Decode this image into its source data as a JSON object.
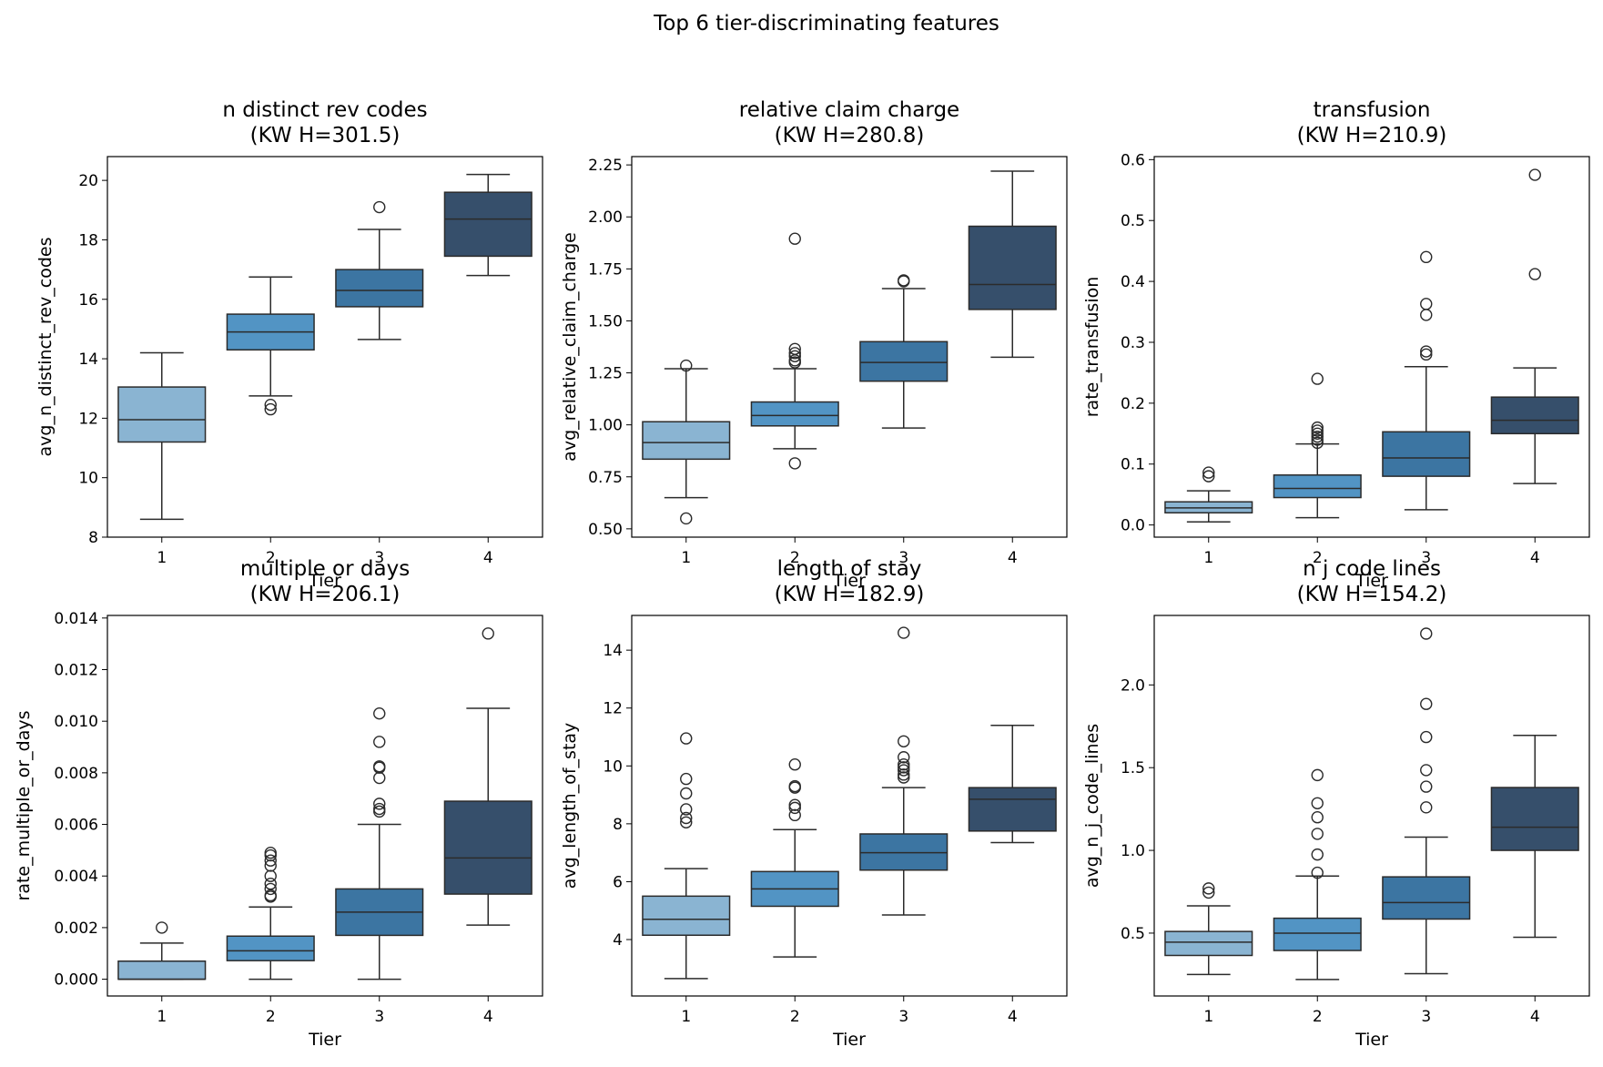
{
  "figure_title": "Top 6 tier-discriminating features",
  "palette": [
    "#8ab4d2",
    "#5294c4",
    "#3c75a2",
    "#364f6b"
  ],
  "chart_data": [
    {
      "type": "box",
      "title_line1": "n distinct rev codes",
      "title_line2": "(KW H=301.5)",
      "xlabel": "Tier",
      "ylabel": "avg_n_distinct_rev_codes",
      "categories": [
        "1",
        "2",
        "3",
        "4"
      ],
      "ylim": [
        8,
        20.8
      ],
      "yticks": [
        8,
        10,
        12,
        14,
        16,
        18,
        20
      ],
      "ytick_labels": [
        "8",
        "10",
        "12",
        "14",
        "16",
        "18",
        "20"
      ],
      "boxes": [
        {
          "whislo": 8.6,
          "q1": 11.2,
          "med": 11.95,
          "q3": 13.05,
          "whishi": 14.2,
          "fliers": []
        },
        {
          "whislo": 12.75,
          "q1": 14.3,
          "med": 14.9,
          "q3": 15.5,
          "whishi": 16.75,
          "fliers": [
            12.3,
            12.45
          ]
        },
        {
          "whislo": 14.65,
          "q1": 15.75,
          "med": 16.3,
          "q3": 17.0,
          "whishi": 18.35,
          "fliers": [
            19.1
          ]
        },
        {
          "whislo": 16.8,
          "q1": 17.45,
          "med": 18.7,
          "q3": 19.6,
          "whishi": 20.2,
          "fliers": []
        }
      ]
    },
    {
      "type": "box",
      "title_line1": "relative claim charge",
      "title_line2": "(KW H=280.8)",
      "xlabel": "Tier",
      "ylabel": "avg_relative_claim_charge",
      "categories": [
        "1",
        "2",
        "3",
        "4"
      ],
      "ylim": [
        0.46,
        2.29
      ],
      "yticks": [
        0.5,
        0.75,
        1.0,
        1.25,
        1.5,
        1.75,
        2.0,
        2.25
      ],
      "ytick_labels": [
        "0.50",
        "0.75",
        "1.00",
        "1.25",
        "1.50",
        "1.75",
        "2.00",
        "2.25"
      ],
      "boxes": [
        {
          "whislo": 0.65,
          "q1": 0.835,
          "med": 0.915,
          "q3": 1.015,
          "whishi": 1.27,
          "fliers": [
            0.55,
            1.285
          ]
        },
        {
          "whislo": 0.885,
          "q1": 0.995,
          "med": 1.045,
          "q3": 1.11,
          "whishi": 1.27,
          "fliers": [
            0.815,
            1.3,
            1.31,
            1.33,
            1.345,
            1.365,
            1.895
          ]
        },
        {
          "whislo": 0.985,
          "q1": 1.21,
          "med": 1.3,
          "q3": 1.4,
          "whishi": 1.655,
          "fliers": [
            1.69,
            1.695
          ]
        },
        {
          "whislo": 1.325,
          "q1": 1.555,
          "med": 1.675,
          "q3": 1.955,
          "whishi": 2.22,
          "fliers": []
        }
      ]
    },
    {
      "type": "box",
      "title_line1": "transfusion",
      "title_line2": "(KW H=210.9)",
      "xlabel": "Tier",
      "ylabel": "rate_transfusion",
      "categories": [
        "1",
        "2",
        "3",
        "4"
      ],
      "ylim": [
        -0.02,
        0.605
      ],
      "yticks": [
        0.0,
        0.1,
        0.2,
        0.3,
        0.4,
        0.5,
        0.6
      ],
      "ytick_labels": [
        "0.0",
        "0.1",
        "0.2",
        "0.3",
        "0.4",
        "0.5",
        "0.6"
      ],
      "boxes": [
        {
          "whislo": 0.005,
          "q1": 0.02,
          "med": 0.028,
          "q3": 0.038,
          "whishi": 0.056,
          "fliers": [
            0.08,
            0.086
          ]
        },
        {
          "whislo": 0.012,
          "q1": 0.045,
          "med": 0.06,
          "q3": 0.082,
          "whishi": 0.133,
          "fliers": [
            0.135,
            0.14,
            0.145,
            0.15,
            0.155,
            0.16,
            0.24
          ]
        },
        {
          "whislo": 0.025,
          "q1": 0.08,
          "med": 0.11,
          "q3": 0.153,
          "whishi": 0.26,
          "fliers": [
            0.28,
            0.285,
            0.345,
            0.363,
            0.44
          ]
        },
        {
          "whislo": 0.068,
          "q1": 0.15,
          "med": 0.172,
          "q3": 0.21,
          "whishi": 0.258,
          "fliers": [
            0.412,
            0.575
          ]
        }
      ]
    },
    {
      "type": "box",
      "title_line1": "multiple or days",
      "title_line2": "(KW H=206.1)",
      "xlabel": "Tier",
      "ylabel": "rate_multiple_or_days",
      "categories": [
        "1",
        "2",
        "3",
        "4"
      ],
      "ylim": [
        -0.00065,
        0.0141
      ],
      "yticks": [
        0.0,
        0.002,
        0.004,
        0.006,
        0.008,
        0.01,
        0.012,
        0.014
      ],
      "ytick_labels": [
        "0.000",
        "0.002",
        "0.004",
        "0.006",
        "0.008",
        "0.010",
        "0.012",
        "0.014"
      ],
      "boxes": [
        {
          "whislo": 0.0,
          "q1": 0.0,
          "med": 0.0,
          "q3": 0.0007,
          "whishi": 0.0014,
          "fliers": [
            0.002
          ]
        },
        {
          "whislo": 0.0,
          "q1": 0.00072,
          "med": 0.0011,
          "q3": 0.00167,
          "whishi": 0.0028,
          "fliers": [
            0.0032,
            0.00325,
            0.0035,
            0.0037,
            0.004,
            0.0044,
            0.0046,
            0.0048,
            0.0049
          ]
        },
        {
          "whislo": 0.0,
          "q1": 0.0017,
          "med": 0.0026,
          "q3": 0.0035,
          "whishi": 0.006,
          "fliers": [
            0.0065,
            0.0066,
            0.0068,
            0.0078,
            0.0082,
            0.00825,
            0.0092,
            0.0103
          ]
        },
        {
          "whislo": 0.0021,
          "q1": 0.0033,
          "med": 0.0047,
          "q3": 0.0069,
          "whishi": 0.0105,
          "fliers": [
            0.0134
          ]
        }
      ]
    },
    {
      "type": "box",
      "title_line1": "length of stay",
      "title_line2": "(KW H=182.9)",
      "xlabel": "Tier",
      "ylabel": "avg_length_of_stay",
      "categories": [
        "1",
        "2",
        "3",
        "4"
      ],
      "ylim": [
        2.05,
        15.2
      ],
      "yticks": [
        4,
        6,
        8,
        10,
        12,
        14
      ],
      "ytick_labels": [
        "4",
        "6",
        "8",
        "10",
        "12",
        "14"
      ],
      "boxes": [
        {
          "whislo": 2.65,
          "q1": 4.15,
          "med": 4.7,
          "q3": 5.5,
          "whishi": 6.45,
          "fliers": [
            8.05,
            8.2,
            8.5,
            9.05,
            9.55,
            10.95
          ]
        },
        {
          "whislo": 3.4,
          "q1": 5.15,
          "med": 5.75,
          "q3": 6.35,
          "whishi": 7.8,
          "fliers": [
            8.3,
            8.55,
            8.65,
            9.25,
            9.3,
            10.05
          ]
        },
        {
          "whislo": 4.85,
          "q1": 6.4,
          "med": 7.0,
          "q3": 7.65,
          "whishi": 9.25,
          "fliers": [
            9.6,
            9.7,
            9.85,
            9.95,
            10.05,
            10.3,
            10.85,
            14.6
          ]
        },
        {
          "whislo": 7.35,
          "q1": 7.75,
          "med": 8.85,
          "q3": 9.25,
          "whishi": 11.4,
          "fliers": []
        }
      ]
    },
    {
      "type": "box",
      "title_line1": "n j code lines",
      "title_line2": "(KW H=154.2)",
      "xlabel": "Tier",
      "ylabel": "avg_n_j_code_lines",
      "categories": [
        "1",
        "2",
        "3",
        "4"
      ],
      "ylim": [
        0.12,
        2.42
      ],
      "yticks": [
        0.5,
        1.0,
        1.5,
        2.0
      ],
      "ytick_labels": [
        "0.5",
        "1.0",
        "1.5",
        "2.0"
      ],
      "boxes": [
        {
          "whislo": 0.25,
          "q1": 0.365,
          "med": 0.445,
          "q3": 0.51,
          "whishi": 0.665,
          "fliers": [
            0.745,
            0.77
          ]
        },
        {
          "whislo": 0.22,
          "q1": 0.395,
          "med": 0.5,
          "q3": 0.59,
          "whishi": 0.845,
          "fliers": [
            0.865,
            0.975,
            1.1,
            1.2,
            1.285,
            1.455
          ]
        },
        {
          "whislo": 0.255,
          "q1": 0.585,
          "med": 0.685,
          "q3": 0.84,
          "whishi": 1.08,
          "fliers": [
            1.26,
            1.385,
            1.485,
            1.685,
            1.885,
            2.31
          ]
        },
        {
          "whislo": 0.475,
          "q1": 1.0,
          "med": 1.14,
          "q3": 1.38,
          "whishi": 1.695,
          "fliers": []
        }
      ]
    }
  ]
}
